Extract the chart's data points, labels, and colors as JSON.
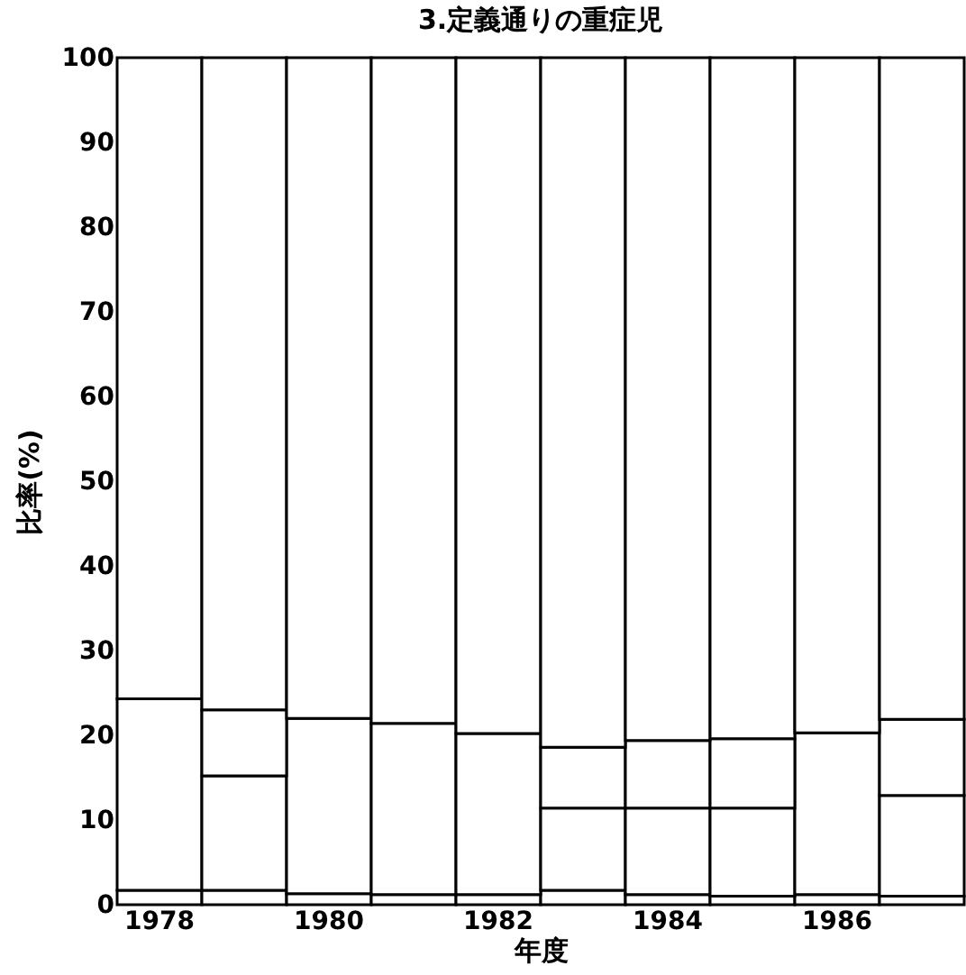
{
  "chart_data": {
    "type": "bar",
    "stacked": true,
    "title": "3.定義通りの重症児",
    "xlabel": "年度",
    "ylabel": "比率(%)",
    "categories": [
      "1978",
      null,
      "1980",
      null,
      "1982",
      null,
      "1984",
      null,
      "1986",
      null
    ],
    "series": [
      {
        "color": "#ffffff",
        "values": [
          1.7,
          1.7,
          1.3,
          1.2,
          1.2,
          1.7,
          1.2,
          1.0,
          1.2,
          1.0
        ]
      },
      {
        "color": "#ffffff",
        "values": [
          22.6,
          13.5,
          20.7,
          20.2,
          19.0,
          9.7,
          10.2,
          10.4,
          19.1,
          11.9
        ]
      },
      {
        "color": "#ffffff",
        "values": [
          null,
          7.8,
          null,
          null,
          null,
          7.2,
          8.0,
          8.2,
          null,
          9.0
        ]
      },
      {
        "color": "#ffffff",
        "values": [
          75.7,
          77.0,
          78.0,
          78.6,
          79.8,
          81.4,
          80.6,
          80.4,
          79.7,
          78.1
        ]
      }
    ],
    "ylim": [
      0,
      100
    ],
    "yticks": [
      0,
      10,
      20,
      30,
      40,
      50,
      60,
      70,
      80,
      90,
      100
    ],
    "grid": false,
    "legend": false
  }
}
